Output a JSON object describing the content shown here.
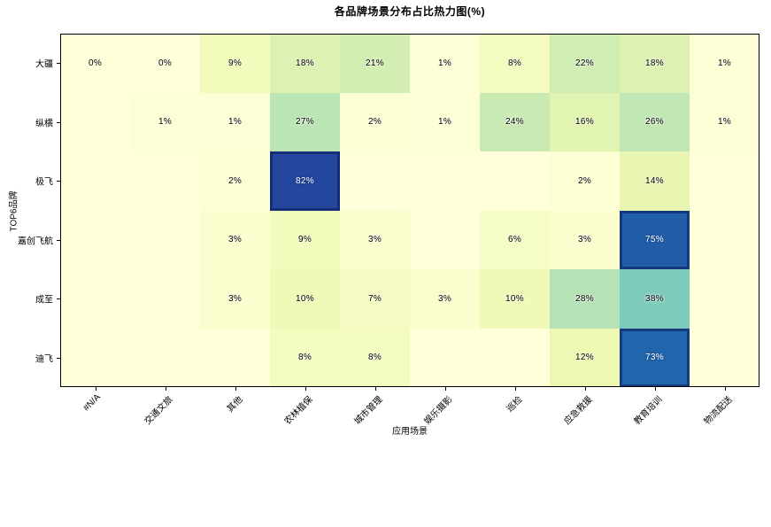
{
  "chart_data": {
    "type": "heatmap",
    "title": "各品牌场景分布占比热力图(%)",
    "xlabel": "应用场景",
    "ylabel": "TOP6品牌",
    "x_categories": [
      "#N/A",
      "交通文旅",
      "其他",
      "农林植保",
      "城市管理",
      "娱乐摄影",
      "巡检",
      "应急救援",
      "教育培训",
      "物流配送"
    ],
    "y_categories": [
      "大疆",
      "纵横",
      "极飞",
      "嘉创飞航",
      "成至",
      "迪飞"
    ],
    "values": [
      [
        0,
        0,
        9,
        18,
        21,
        1,
        8,
        22,
        18,
        1
      ],
      [
        null,
        1,
        1,
        27,
        2,
        1,
        24,
        16,
        26,
        1
      ],
      [
        null,
        null,
        2,
        82,
        null,
        null,
        null,
        2,
        14,
        null
      ],
      [
        null,
        null,
        3,
        9,
        3,
        null,
        6,
        3,
        75,
        null
      ],
      [
        null,
        null,
        3,
        10,
        7,
        3,
        10,
        28,
        38,
        null
      ],
      [
        null,
        null,
        null,
        8,
        8,
        null,
        null,
        12,
        73,
        null
      ]
    ],
    "value_suffix": "%",
    "vmin": 0,
    "vmax": 100,
    "colormap": {
      "name": "YlGnBu",
      "stops": [
        {
          "pos": 0.0,
          "color": "#ffffd9"
        },
        {
          "pos": 0.125,
          "color": "#edf8b1"
        },
        {
          "pos": 0.25,
          "color": "#c7e9b4"
        },
        {
          "pos": 0.375,
          "color": "#7fcdbb"
        },
        {
          "pos": 0.5,
          "color": "#41b6c4"
        },
        {
          "pos": 0.625,
          "color": "#1d91c0"
        },
        {
          "pos": 0.75,
          "color": "#225ea8"
        },
        {
          "pos": 0.875,
          "color": "#253494"
        },
        {
          "pos": 1.0,
          "color": "#081d58"
        }
      ]
    },
    "legend": "none",
    "grid": false,
    "annotation_text_colors": {
      "dark_cells": "#ffffff",
      "light_cells": "#000000"
    }
  }
}
